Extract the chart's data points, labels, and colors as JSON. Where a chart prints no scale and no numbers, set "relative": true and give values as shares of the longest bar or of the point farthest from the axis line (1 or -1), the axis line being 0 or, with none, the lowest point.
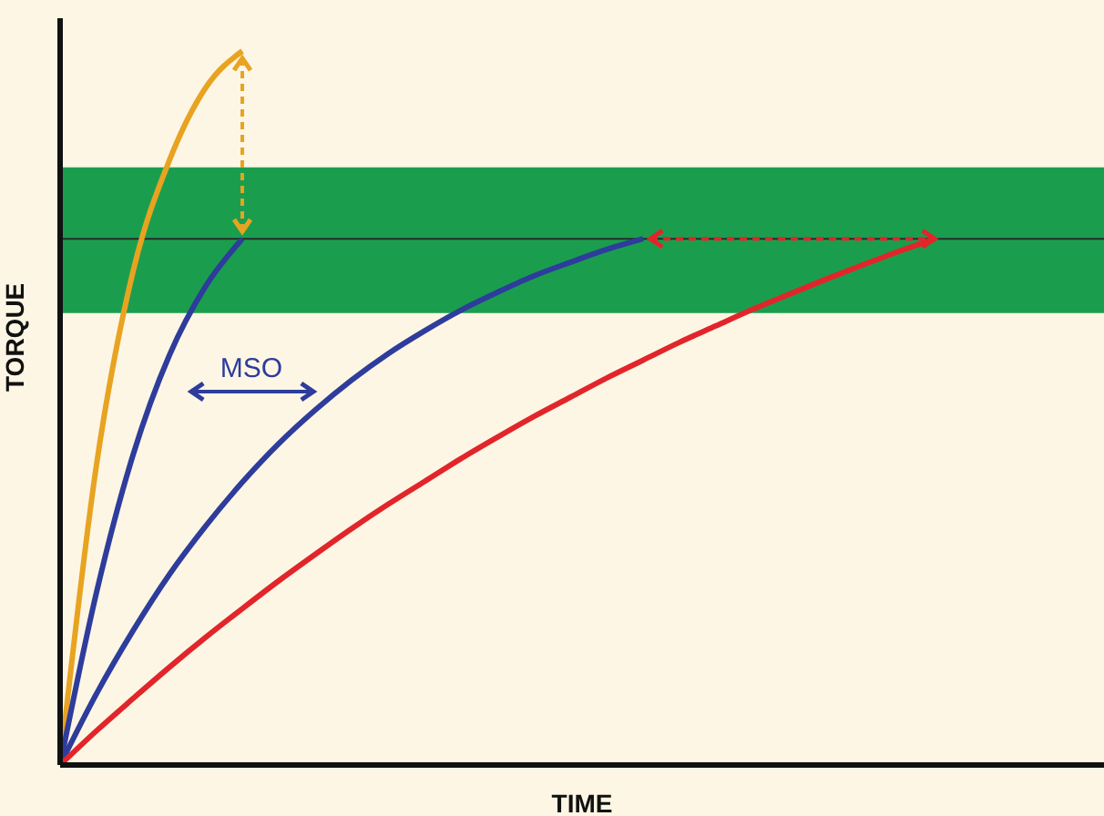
{
  "chart_data": {
    "type": "line",
    "relative": true,
    "xlabel": "TIME",
    "ylabel": "TORQUE",
    "categories": [
      null,
      null,
      null,
      null,
      null,
      null,
      null,
      null,
      null,
      null,
      null,
      null,
      null,
      null,
      null,
      null,
      null,
      null,
      null,
      null,
      null,
      null,
      null,
      null,
      null,
      null,
      null,
      null,
      null
    ],
    "series": [
      {
        "color": "#e8a321",
        "values": [
          0,
          0.421,
          0.691,
          0.847,
          0.949,
          1.0,
          null,
          null,
          null,
          null,
          null,
          null,
          null,
          null,
          null,
          null,
          null,
          null,
          null,
          null,
          null,
          null,
          null,
          null,
          null,
          null,
          null,
          null,
          null
        ]
      },
      {
        "color": "#2e3c9c",
        "values": [
          0,
          0.242,
          0.434,
          0.574,
          0.671,
          0.737,
          null,
          null,
          null,
          null,
          null,
          null,
          null,
          null,
          null,
          null,
          null,
          null,
          null,
          null,
          null,
          null,
          null,
          null,
          null,
          null,
          null,
          null,
          null
        ]
      },
      {
        "color": "#2e3c9c",
        "values": [
          0,
          0.1,
          0.188,
          0.267,
          0.335,
          0.396,
          0.45,
          0.497,
          0.539,
          0.576,
          0.608,
          0.637,
          0.662,
          0.685,
          0.704,
          0.722,
          0.737,
          null,
          null,
          null,
          null,
          null,
          null,
          null,
          null,
          null,
          null,
          null,
          null
        ]
      },
      {
        "color": "#e2252b",
        "values": [
          0,
          0.048,
          0.093,
          0.137,
          0.179,
          0.219,
          0.258,
          0.295,
          0.331,
          0.365,
          0.397,
          0.429,
          0.459,
          0.488,
          0.515,
          0.542,
          0.567,
          0.592,
          0.615,
          0.638,
          0.659,
          0.68,
          0.7,
          0.719,
          0.737,
          null,
          null,
          null,
          null
        ]
      }
    ],
    "bands": [
      {
        "axis": "y",
        "from": 0.633,
        "to": 0.837,
        "color": "#1a9e4e"
      }
    ],
    "ref_lines": [
      {
        "axis": "y",
        "value": 0.737,
        "color": "#2a2a2a"
      }
    ],
    "annotations": [
      "MSO"
    ]
  }
}
